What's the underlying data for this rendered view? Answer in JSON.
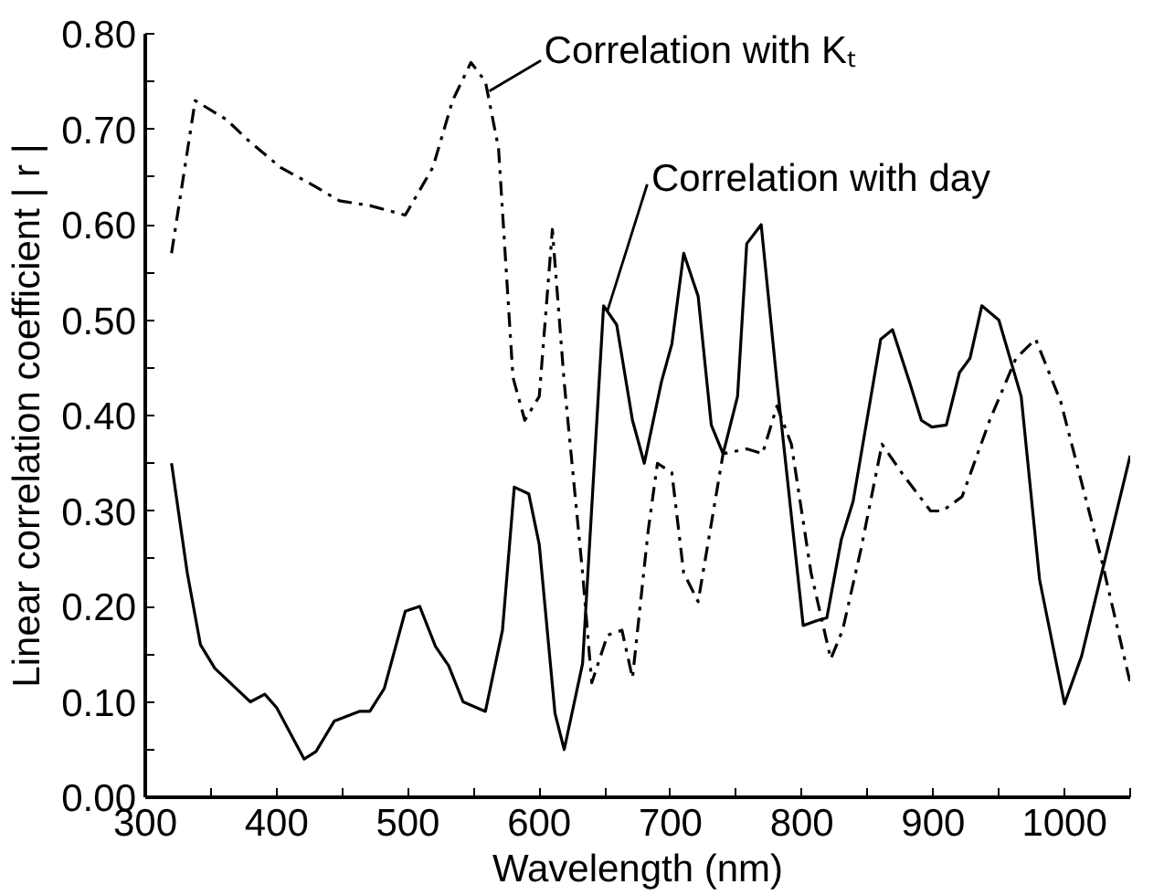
{
  "chart_data": {
    "type": "line",
    "xlabel": "Wavelength (nm)",
    "ylabel": "Linear correlation coefficient | r |",
    "xlim": [
      300,
      1050
    ],
    "ylim": [
      0,
      0.8
    ],
    "xticks": [
      300,
      {
        "value": 350,
        "label": null
      },
      400,
      {
        "value": 450,
        "label": null
      },
      500,
      {
        "value": 550,
        "label": null
      },
      600,
      {
        "value": 650,
        "label": null
      },
      700,
      {
        "value": 750,
        "label": null
      },
      800,
      {
        "value": 850,
        "label": null
      },
      900,
      {
        "value": 950,
        "label": null
      },
      1000,
      {
        "value": 1050,
        "label": null
      }
    ],
    "yticks": [
      {
        "value": 0,
        "label": "0.00"
      },
      {
        "value": 0.05,
        "label": null
      },
      {
        "value": 0.1,
        "label": "0.10"
      },
      {
        "value": 0.15,
        "label": null
      },
      {
        "value": 0.2,
        "label": "0.20"
      },
      {
        "value": 0.25,
        "label": null
      },
      {
        "value": 0.3,
        "label": "0.30"
      },
      {
        "value": 0.35,
        "label": null
      },
      {
        "value": 0.4,
        "label": "0.40"
      },
      {
        "value": 0.45,
        "label": null
      },
      {
        "value": 0.5,
        "label": "0.50"
      },
      {
        "value": 0.55,
        "label": null
      },
      {
        "value": 0.6,
        "label": "0.60"
      },
      {
        "value": 0.65,
        "label": null
      },
      {
        "value": 0.7,
        "label": "0.70"
      },
      {
        "value": 0.75,
        "label": null
      },
      {
        "value": 0.8,
        "label": "0.80"
      }
    ],
    "grid": false,
    "marker": "none",
    "series": [
      {
        "color": "#000000",
        "line_style": "dashdot",
        "x": [
          320,
          338,
          362,
          377,
          403,
          423,
          448,
          471,
          498,
          519,
          534,
          548,
          559,
          569,
          580,
          589,
          600,
          610,
          619,
          633,
          640,
          652,
          663,
          671,
          683,
          690,
          701,
          710,
          721,
          740,
          758,
          770,
          781,
          792,
          807,
          822,
          831,
          845,
          861,
          876,
          898,
          907,
          922,
          943,
          963,
          978,
          997,
          1028,
          1050
        ],
        "values": [
          0.57,
          0.73,
          0.71,
          0.69,
          0.66,
          0.645,
          0.625,
          0.62,
          0.61,
          0.66,
          0.73,
          0.77,
          0.75,
          0.68,
          0.44,
          0.395,
          0.42,
          0.595,
          0.435,
          0.235,
          0.12,
          0.17,
          0.175,
          0.125,
          0.28,
          0.35,
          0.34,
          0.235,
          0.205,
          0.36,
          0.365,
          0.36,
          0.41,
          0.37,
          0.235,
          0.145,
          0.175,
          0.26,
          0.37,
          0.34,
          0.3,
          0.3,
          0.315,
          0.395,
          0.46,
          0.48,
          0.415,
          0.25,
          0.12
        ]
      },
      {
        "color": "#000000",
        "line_style": "solid",
        "x": [
          320,
          332,
          342,
          353,
          380,
          391,
          400,
          421,
          430,
          444,
          463,
          471,
          482,
          498,
          509,
          521,
          531,
          542,
          559,
          572,
          581,
          592,
          600,
          612,
          619,
          633,
          649,
          659,
          671,
          680,
          693,
          701,
          710,
          721,
          731,
          740,
          751,
          758,
          769,
          781,
          801,
          811,
          819,
          830,
          839,
          860,
          869,
          882,
          891,
          899,
          910,
          920,
          928,
          937,
          950,
          967,
          981,
          1000,
          1013,
          1050
        ],
        "values": [
          0.35,
          0.235,
          0.16,
          0.135,
          0.1,
          0.108,
          0.094,
          0.04,
          0.048,
          0.08,
          0.09,
          0.09,
          0.114,
          0.195,
          0.2,
          0.158,
          0.138,
          0.1,
          0.09,
          0.175,
          0.325,
          0.318,
          0.265,
          0.088,
          0.05,
          0.14,
          0.515,
          0.495,
          0.395,
          0.35,
          0.435,
          0.475,
          0.57,
          0.525,
          0.39,
          0.36,
          0.42,
          0.58,
          0.6,
          0.435,
          0.18,
          0.185,
          0.188,
          0.27,
          0.31,
          0.48,
          0.49,
          0.435,
          0.395,
          0.388,
          0.39,
          0.445,
          0.46,
          0.515,
          0.5,
          0.42,
          0.228,
          0.098,
          0.148,
          0.358
        ]
      }
    ],
    "annotations": [
      {
        "text": "Correlation with Kₜ",
        "x": 562,
        "y": 0.74
      },
      {
        "text": "Correlation with day",
        "x": 652,
        "y": 0.51
      }
    ]
  }
}
